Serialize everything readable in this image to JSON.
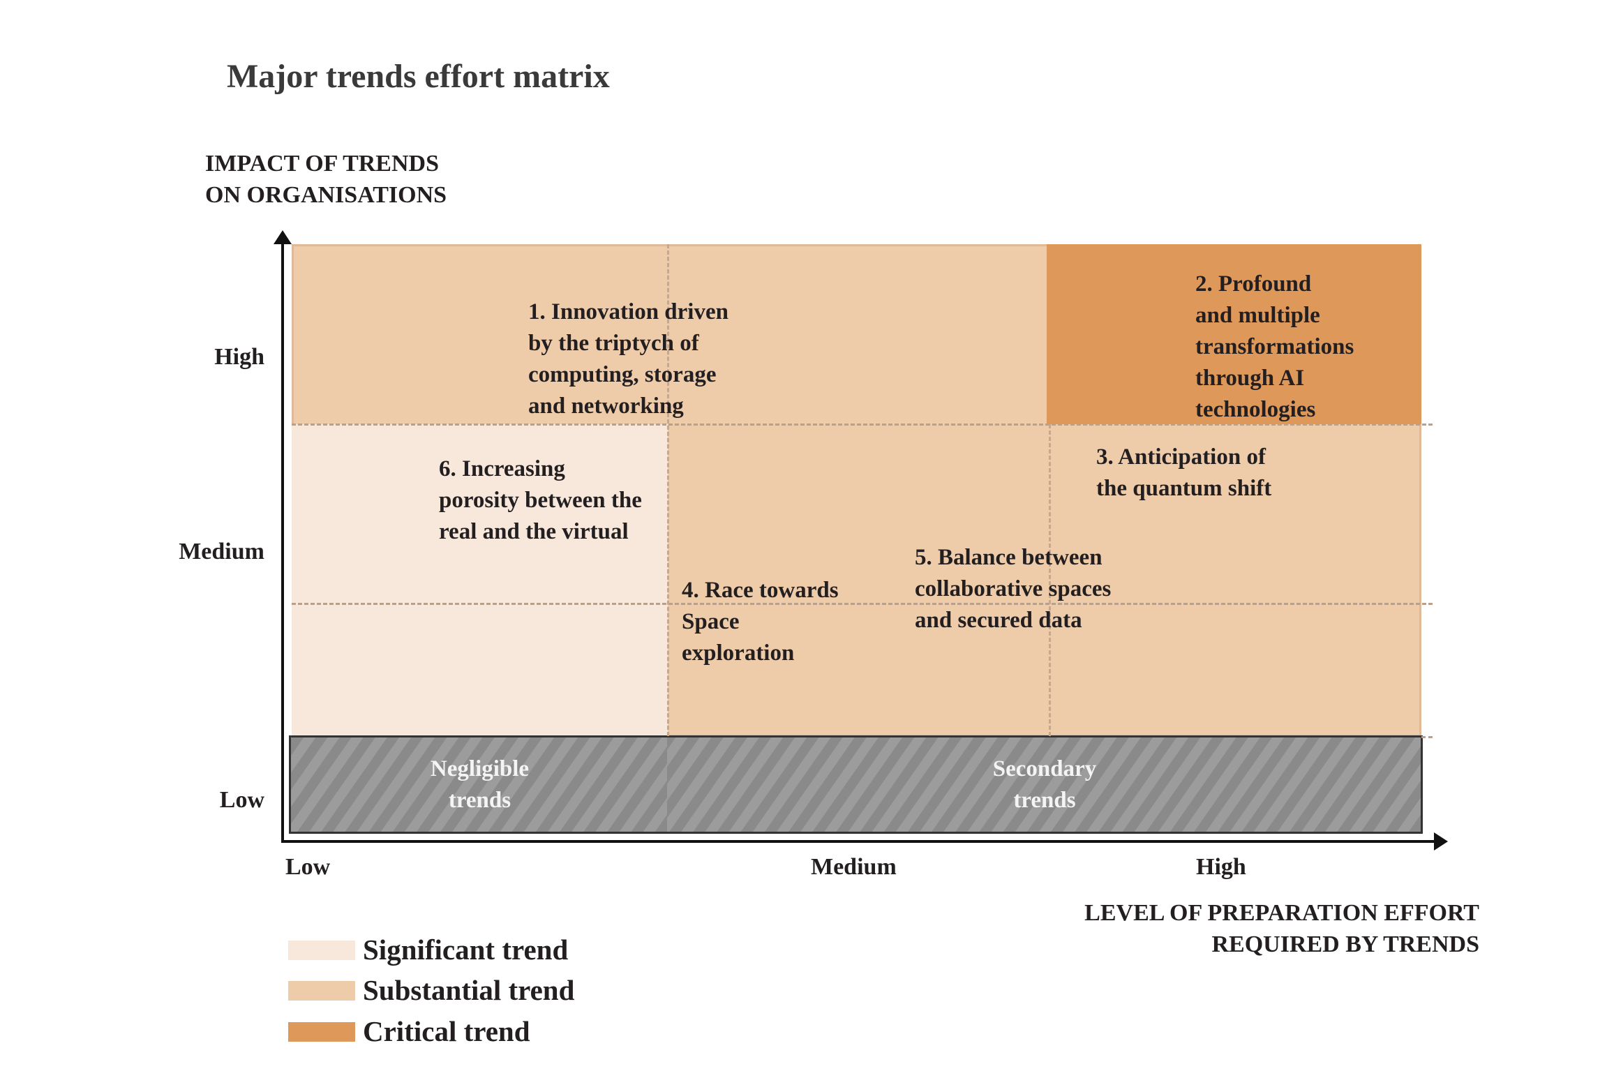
{
  "title": "Major trends effort matrix",
  "y_axis": {
    "title_lines": [
      "IMPACT OF TRENDS",
      "ON ORGANISATIONS"
    ],
    "ticks": [
      "High",
      "Medium",
      "Low"
    ]
  },
  "x_axis": {
    "title_lines": [
      "LEVEL OF PREPARATION EFFORT",
      "REQUIRED BY TRENDS"
    ],
    "ticks": [
      "Low",
      "Medium",
      "High"
    ]
  },
  "trends": [
    {
      "lines": [
        "1. Innovation driven",
        "by the triptych of",
        "computing, storage",
        "and networking"
      ],
      "category": "Substantial trend"
    },
    {
      "lines": [
        "2. Profound",
        "and multiple",
        "transformations",
        "through AI",
        "technologies"
      ],
      "category": "Critical trend"
    },
    {
      "lines": [
        "3. Anticipation of",
        "the quantum shift"
      ],
      "category": "Substantial trend"
    },
    {
      "lines": [
        "4. Race towards",
        "Space",
        "exploration"
      ],
      "category": "Substantial trend"
    },
    {
      "lines": [
        "5. Balance between",
        "collaborative spaces",
        "and secured data"
      ],
      "category": "Substantial trend"
    },
    {
      "lines": [
        "6. Increasing",
        "porosity between the",
        "real and the virtual"
      ],
      "category": "Significant trend"
    }
  ],
  "zones": {
    "negligible": [
      "Negligible",
      "trends"
    ],
    "secondary": [
      "Secondary",
      "trends"
    ]
  },
  "legend": [
    {
      "label": "Significant trend",
      "color": "#f7e8db"
    },
    {
      "label": "Substantial trend",
      "color": "#eecba9"
    },
    {
      "label": "Critical trend",
      "color": "#de9859"
    }
  ]
}
